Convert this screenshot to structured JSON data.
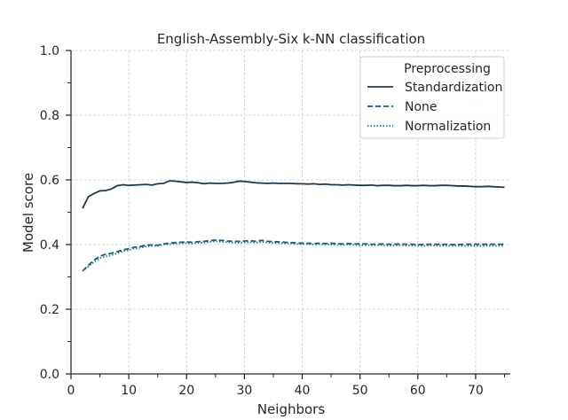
{
  "chart_data": {
    "type": "line",
    "title": "English-Assembly-Six k-NN classification",
    "xlabel": "Neighbors",
    "ylabel": "Model score",
    "xlim": [
      0,
      76
    ],
    "ylim": [
      0.0,
      1.0
    ],
    "xticks": [
      "0",
      "10",
      "20",
      "30",
      "40",
      "50",
      "60",
      "70"
    ],
    "xtick_values": [
      0,
      10,
      20,
      30,
      40,
      50,
      60,
      70
    ],
    "yticks": [
      "0.0",
      "0.2",
      "0.4",
      "0.6",
      "0.8",
      "1.0"
    ],
    "ytick_values": [
      0.0,
      0.2,
      0.4,
      0.6,
      0.8,
      1.0
    ],
    "grid": true,
    "legend": {
      "title": "Preprocessing",
      "placement": "top-right"
    },
    "x": [
      2,
      3,
      4,
      5,
      6,
      7,
      8,
      9,
      10,
      11,
      12,
      13,
      14,
      15,
      16,
      17,
      18,
      19,
      20,
      21,
      22,
      23,
      24,
      25,
      26,
      27,
      28,
      29,
      30,
      31,
      32,
      33,
      34,
      35,
      36,
      37,
      38,
      39,
      40,
      41,
      42,
      43,
      44,
      45,
      46,
      47,
      48,
      49,
      50,
      51,
      52,
      53,
      54,
      55,
      56,
      57,
      58,
      59,
      60,
      61,
      62,
      63,
      64,
      65,
      66,
      67,
      68,
      69,
      70,
      71,
      72,
      73,
      74,
      75
    ],
    "series": [
      {
        "name": "Standardization",
        "style": "solid",
        "color": "#22394a",
        "values": [
          0.512,
          0.548,
          0.558,
          0.566,
          0.567,
          0.572,
          0.582,
          0.585,
          0.583,
          0.584,
          0.585,
          0.586,
          0.584,
          0.588,
          0.589,
          0.597,
          0.596,
          0.594,
          0.592,
          0.593,
          0.591,
          0.588,
          0.59,
          0.589,
          0.589,
          0.59,
          0.592,
          0.596,
          0.595,
          0.593,
          0.591,
          0.59,
          0.589,
          0.59,
          0.589,
          0.589,
          0.589,
          0.588,
          0.588,
          0.587,
          0.588,
          0.586,
          0.587,
          0.585,
          0.585,
          0.584,
          0.585,
          0.584,
          0.583,
          0.583,
          0.584,
          0.582,
          0.583,
          0.583,
          0.582,
          0.582,
          0.583,
          0.582,
          0.582,
          0.583,
          0.582,
          0.582,
          0.583,
          0.583,
          0.582,
          0.581,
          0.581,
          0.58,
          0.579,
          0.579,
          0.58,
          0.579,
          0.578,
          0.577
        ]
      },
      {
        "name": "None",
        "style": "dashed",
        "color": "#1f5873",
        "values": [
          0.318,
          0.336,
          0.352,
          0.364,
          0.37,
          0.373,
          0.378,
          0.384,
          0.387,
          0.392,
          0.394,
          0.398,
          0.399,
          0.398,
          0.402,
          0.404,
          0.406,
          0.407,
          0.408,
          0.407,
          0.409,
          0.41,
          0.412,
          0.414,
          0.413,
          0.411,
          0.41,
          0.41,
          0.411,
          0.412,
          0.41,
          0.413,
          0.41,
          0.409,
          0.408,
          0.407,
          0.406,
          0.405,
          0.404,
          0.404,
          0.403,
          0.404,
          0.403,
          0.404,
          0.403,
          0.402,
          0.403,
          0.402,
          0.402,
          0.402,
          0.401,
          0.401,
          0.402,
          0.401,
          0.401,
          0.402,
          0.401,
          0.401,
          0.4,
          0.4,
          0.401,
          0.401,
          0.4,
          0.401,
          0.4,
          0.4,
          0.401,
          0.401,
          0.401,
          0.401,
          0.401,
          0.401,
          0.401,
          0.401
        ]
      },
      {
        "name": "Normalization",
        "style": "dotted",
        "color": "#1b7a8c",
        "values": [
          0.318,
          0.332,
          0.346,
          0.358,
          0.363,
          0.367,
          0.373,
          0.379,
          0.383,
          0.388,
          0.39,
          0.394,
          0.396,
          0.396,
          0.4,
          0.401,
          0.403,
          0.404,
          0.404,
          0.403,
          0.405,
          0.406,
          0.408,
          0.41,
          0.409,
          0.407,
          0.406,
          0.406,
          0.407,
          0.407,
          0.406,
          0.408,
          0.406,
          0.405,
          0.404,
          0.404,
          0.403,
          0.402,
          0.401,
          0.401,
          0.4,
          0.401,
          0.4,
          0.4,
          0.399,
          0.399,
          0.4,
          0.399,
          0.398,
          0.398,
          0.398,
          0.398,
          0.398,
          0.397,
          0.397,
          0.398,
          0.397,
          0.397,
          0.396,
          0.396,
          0.397,
          0.397,
          0.396,
          0.397,
          0.396,
          0.396,
          0.396,
          0.396,
          0.396,
          0.396,
          0.396,
          0.396,
          0.396,
          0.396
        ]
      }
    ]
  }
}
